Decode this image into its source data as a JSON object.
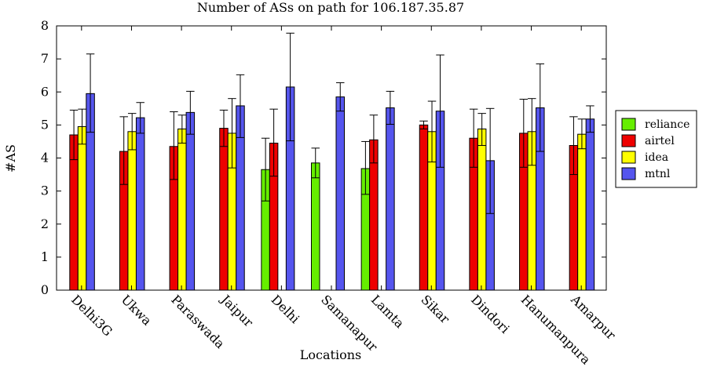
{
  "chart_data": {
    "type": "bar",
    "title": "Number of ASs on path for 106.187.35.87",
    "xlabel": "Locations",
    "ylabel": "#AS",
    "ylim": [
      0,
      8
    ],
    "yticks": [
      "0",
      "1",
      "2",
      "3",
      "4",
      "5",
      "6",
      "7",
      "8"
    ],
    "categories": [
      "Delhi3G",
      "Ukwa",
      "Paraswada",
      "Jaipur",
      "Delhi",
      "Samanapur",
      "Lamta",
      "Sikar",
      "Dindori",
      "Hanumanpura",
      "Amarpur"
    ],
    "legend_position": "right",
    "series": [
      {
        "name": "reliance",
        "color": "#66ee00",
        "values": [
          null,
          null,
          null,
          null,
          3.65,
          3.85,
          3.68,
          null,
          null,
          null,
          null
        ],
        "err_low": [
          null,
          null,
          null,
          null,
          2.7,
          3.4,
          2.9,
          null,
          null,
          null,
          null
        ],
        "err_high": [
          null,
          null,
          null,
          null,
          4.6,
          4.3,
          4.5,
          null,
          null,
          null,
          null
        ]
      },
      {
        "name": "airtel",
        "color": "#ee0000",
        "values": [
          4.7,
          4.2,
          4.35,
          4.9,
          4.45,
          null,
          4.55,
          5.0,
          4.6,
          4.75,
          4.38
        ],
        "err_low": [
          3.95,
          3.2,
          3.35,
          4.35,
          3.45,
          null,
          3.85,
          4.88,
          3.72,
          3.72,
          3.5
        ],
        "err_high": [
          5.45,
          5.25,
          5.4,
          5.45,
          5.48,
          null,
          5.3,
          5.12,
          5.48,
          5.78,
          5.25
        ]
      },
      {
        "name": "idea",
        "color": "#ffff00",
        "values": [
          4.95,
          4.8,
          4.88,
          4.75,
          null,
          null,
          null,
          4.8,
          4.88,
          4.8,
          4.72
        ],
        "err_low": [
          4.42,
          4.25,
          4.45,
          3.7,
          null,
          null,
          null,
          3.88,
          4.38,
          3.78,
          4.28
        ],
        "err_high": [
          5.48,
          5.35,
          5.3,
          5.8,
          null,
          null,
          null,
          5.72,
          5.35,
          5.8,
          5.18
        ]
      },
      {
        "name": "mtnl",
        "color": "#5555ee",
        "values": [
          5.95,
          5.22,
          5.38,
          5.58,
          6.15,
          5.85,
          5.52,
          5.42,
          3.92,
          5.52,
          5.18
        ],
        "err_low": [
          4.78,
          4.75,
          4.72,
          4.62,
          4.52,
          5.42,
          5.02,
          3.72,
          2.32,
          4.2,
          4.78
        ],
        "err_high": [
          7.15,
          5.68,
          6.02,
          6.52,
          7.78,
          6.28,
          6.02,
          7.12,
          5.5,
          6.85,
          5.58
        ]
      }
    ]
  }
}
